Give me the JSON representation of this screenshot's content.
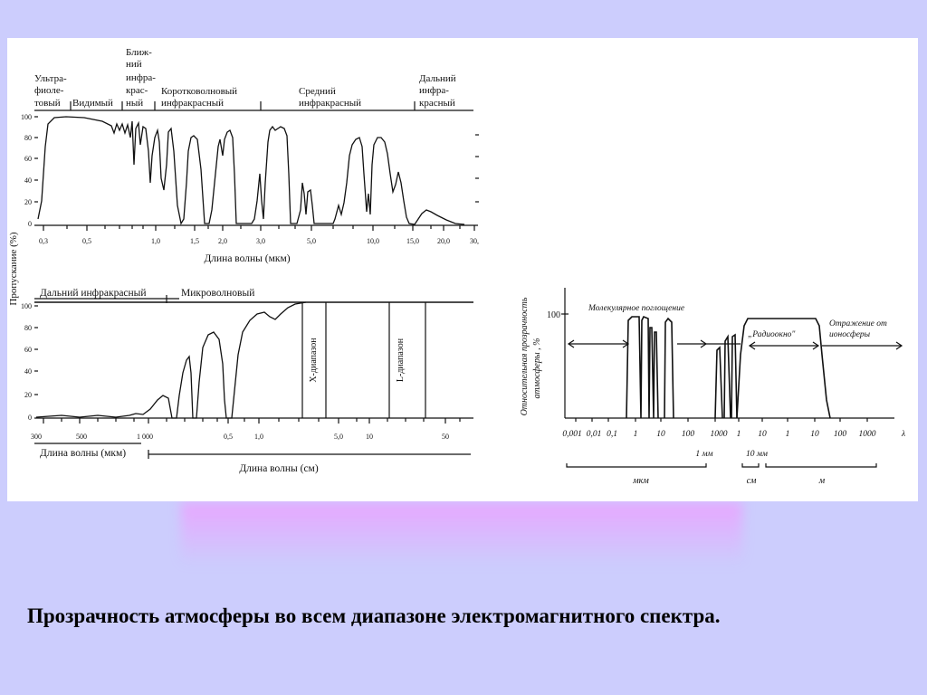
{
  "caption": "Прозрачность атмосферы во всем диапазоне электромагнитного спектра.",
  "left_figure": {
    "ylabel": "Пропускание (%)",
    "top_panel": {
      "bands": [
        {
          "lines": [
            "Ультра-",
            "фиоле-",
            "товый"
          ]
        },
        {
          "lines": [
            "Видимый"
          ]
        },
        {
          "lines": [
            "Ближ-",
            "ний",
            "инфра-",
            "крас-",
            "ный"
          ]
        },
        {
          "lines": [
            "Коротковолновый",
            "инфракрасный"
          ]
        },
        {
          "lines": [
            "Средний",
            "инфракрасный"
          ]
        },
        {
          "lines": [
            "Дальний",
            "инфра-",
            "красный"
          ]
        }
      ],
      "yticks": [
        "100",
        "80",
        "60",
        "40",
        "20",
        "0"
      ],
      "xticks": [
        "0,3",
        "0,5",
        "1,0",
        "1,5",
        "2,0",
        "3,0",
        "5,0",
        "10,0",
        "15,0",
        "20,0",
        "30,"
      ],
      "xlabel": "Длина волны (мкм)"
    },
    "bottom_panel": {
      "bands": [
        "Дальний инфракрасный",
        "Микроволновый"
      ],
      "yticks": [
        "100",
        "80",
        "60",
        "40",
        "20",
        "0"
      ],
      "xticks_um": [
        "300",
        "500",
        "1 000"
      ],
      "xticks_cm": [
        "0,5",
        "1,0",
        "5,0",
        "10",
        "50"
      ],
      "xlabel_um": "Длина волны (мкм)",
      "xlabel_cm": "Длина волны (см)",
      "band_labels": [
        "X-диапазон",
        "L-диапазон"
      ]
    }
  },
  "right_figure": {
    "ylabel_lines": [
      "Относительная прозрачность",
      "атмосферы , %"
    ],
    "ytick": "100",
    "annotations": {
      "molecular": "Молекулярное поглощение",
      "radio_window": "„Радиоокно\"",
      "reflection_lines": [
        "Отражение от",
        "ионосферы"
      ]
    },
    "xticks": [
      "0,001",
      "0,01",
      "0,1",
      "1",
      "10",
      "100",
      "1000",
      "1",
      "10",
      "1",
      "10",
      "100",
      "1000"
    ],
    "x_symbol": "λ",
    "marks": [
      "1 мм",
      "10 мм"
    ],
    "units": [
      "мкм",
      "см",
      "м"
    ]
  }
}
